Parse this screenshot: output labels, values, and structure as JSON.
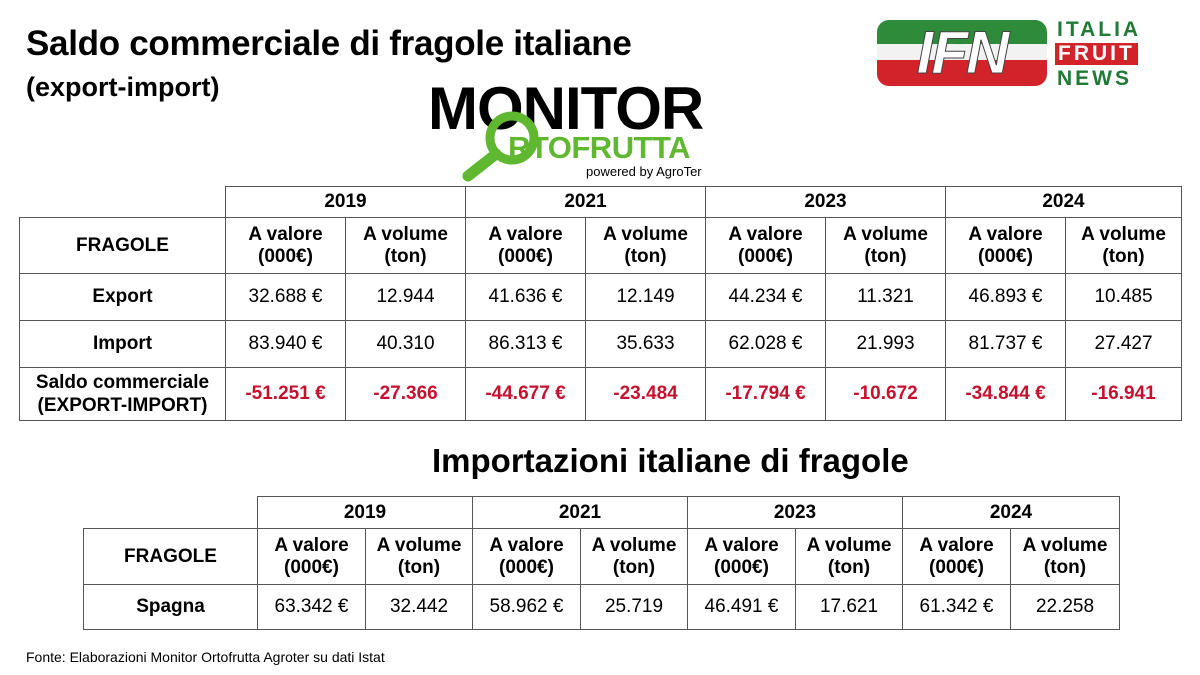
{
  "title": "Saldo commerciale di fragole italiane",
  "subtitle": "(export-import)",
  "monitor_logo": {
    "word1": "MONITOR",
    "word2": "RTOFRUTTA",
    "powered": "powered by AgroTer",
    "icon": "magnifier-o-icon",
    "accent": "#5fb830"
  },
  "ifn_logo": {
    "mark": "IFN",
    "line1": "ITALIA",
    "line2": "FRUIT",
    "line3": "NEWS",
    "colors": [
      "#2e8b3a",
      "#ffffff",
      "#d2232a"
    ]
  },
  "table1": {
    "years": [
      "2019",
      "2021",
      "2023",
      "2024"
    ],
    "row_header": "FRAGOLE",
    "col_value": "A valore (000€)",
    "col_volume": "A volume (ton)",
    "rows": [
      {
        "label": "Export",
        "cells": [
          "32.688 €",
          "12.944",
          "41.636 €",
          "12.149",
          "44.234 €",
          "11.321",
          "46.893 €",
          "10.485"
        ]
      },
      {
        "label": "Import",
        "cells": [
          "83.940 €",
          "40.310",
          "86.313 €",
          "35.633",
          "62.028 €",
          "21.993",
          "81.737 €",
          "27.427"
        ]
      },
      {
        "label": "Saldo commerciale (EXPORT-IMPORT)",
        "cells": [
          "-51.251 €",
          "-27.366",
          "-44.677 €",
          "-23.484",
          "-17.794 €",
          "-10.672",
          "-34.844 €",
          "-16.941"
        ]
      }
    ]
  },
  "heading2": "Importazioni italiane di fragole",
  "table2": {
    "years": [
      "2019",
      "2021",
      "2023",
      "2024"
    ],
    "row_header": "FRAGOLE",
    "col_value": "A valore (000€)",
    "col_volume": "A volume (ton)",
    "rows": [
      {
        "label": "Spagna",
        "cells": [
          "63.342 €",
          "32.442",
          "58.962 €",
          "25.719",
          "46.491 €",
          "17.621",
          "61.342 €",
          "22.258"
        ]
      }
    ]
  },
  "negative_color": "#c8102e",
  "source": "Fonte: Elaborazioni Monitor Ortofrutta Agroter su dati Istat"
}
